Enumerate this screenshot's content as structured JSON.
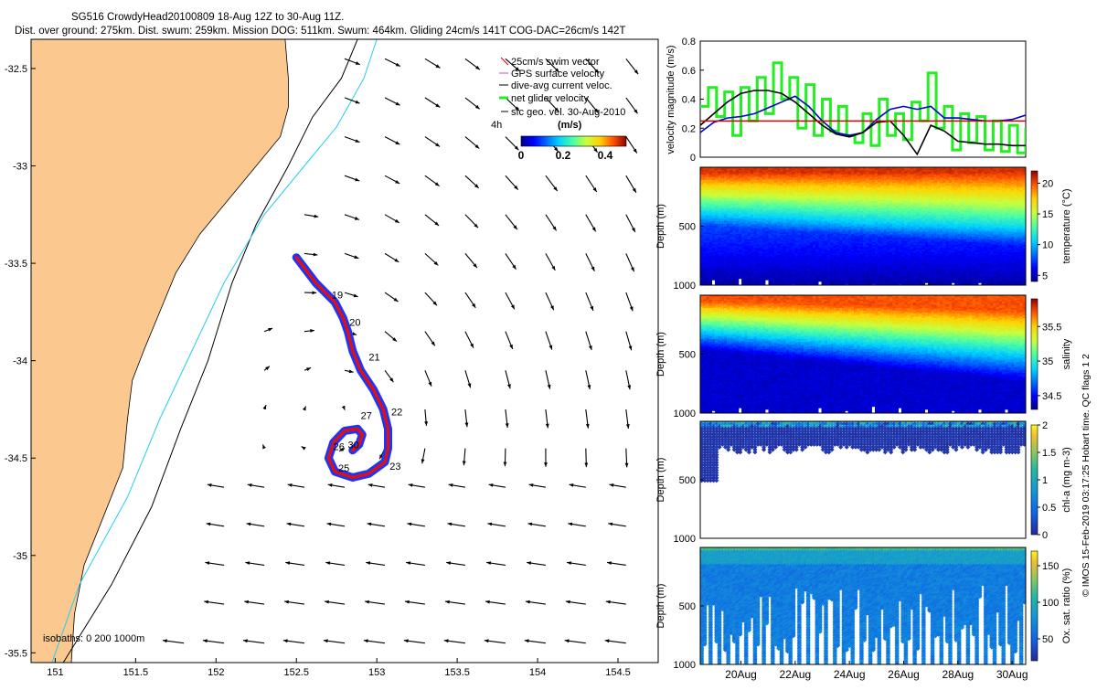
{
  "header": {
    "line1": "SG516 CrowdyHead20100809 18-Aug 12Z to 30-Aug 11Z.",
    "line2": "Dist. over ground: 275km. Dist. swum: 259km. Mission DOG: 511km. Swum: 464km. Gliding 24cm/s 141T COG-DAC=26cm/s 142T"
  },
  "side_note": "© IMOS 15-Feb-2019 03:17:25 Hobart time. QC flags 1  2",
  "colors": {
    "land": "#fbc990",
    "coast": "#000000",
    "iso200": "#000000",
    "iso1000": "#22ccee",
    "track_blue": "#1a35ff",
    "track_red": "#dd1111",
    "swim_red": "#e00000",
    "net_green": "#22ee22",
    "dac_blue": "#0000cc",
    "vel_black": "#000000"
  },
  "chart_data": [
    {
      "type": "map",
      "name": "trajectory",
      "xlim": [
        150.85,
        154.75
      ],
      "ylim": [
        -35.55,
        -32.35
      ],
      "x_ticks": [
        "151",
        "151.5",
        "152",
        "152.5",
        "153",
        "153.5",
        "154",
        "154.5"
      ],
      "x_tick_values": [
        151,
        151.5,
        152,
        152.5,
        153,
        153.5,
        154,
        154.5
      ],
      "y_ticks": [
        "-32.5",
        "-33",
        "-33.5",
        "-34",
        "-34.5",
        "-35",
        "-35.5"
      ],
      "y_tick_values": [
        -32.5,
        -33,
        -33.5,
        -34,
        -34.5,
        -35,
        -35.5
      ],
      "legend": [
        {
          "label": "25cm/s swim vector",
          "color": "#cc0000",
          "marker": "line"
        },
        {
          "label": "GPS surface velocity",
          "color": "#cc44cc",
          "marker": "line"
        },
        {
          "label": "dive-avg current veloc.",
          "color": "#000000",
          "marker": "line"
        },
        {
          "label": "net glider velocity",
          "color": "#22ee22",
          "marker": "thick"
        },
        {
          "label": "sfc geo. vel. 30-Aug-2010",
          "color": "#000000",
          "marker": "arrow"
        }
      ],
      "legend_extra": "4h",
      "colorbar_title": "(m/s)",
      "colorbar_ticks": [
        "0",
        "0.2",
        "0.4"
      ],
      "colorbar_values": [
        0,
        0.2,
        0.4
      ],
      "colorbar_range": [
        0,
        0.5
      ],
      "isobath_label": "isobaths: 0   200  1000m",
      "coast": [
        [
          151.1,
          -35.55
        ],
        [
          151.12,
          -35.3
        ],
        [
          151.18,
          -35.05
        ],
        [
          151.3,
          -34.8
        ],
        [
          151.42,
          -34.55
        ],
        [
          151.45,
          -34.3
        ],
        [
          151.48,
          -34.1
        ],
        [
          151.55,
          -33.95
        ],
        [
          151.65,
          -33.75
        ],
        [
          151.75,
          -33.55
        ],
        [
          151.9,
          -33.35
        ],
        [
          152.1,
          -33.15
        ],
        [
          152.25,
          -33.0
        ],
        [
          152.4,
          -32.85
        ],
        [
          152.45,
          -32.7
        ],
        [
          152.45,
          -32.55
        ],
        [
          152.43,
          -32.35
        ]
      ],
      "iso200": [
        [
          151.05,
          -35.55
        ],
        [
          151.35,
          -35.15
        ],
        [
          151.6,
          -34.75
        ],
        [
          151.78,
          -34.35
        ],
        [
          151.95,
          -34.0
        ],
        [
          152.1,
          -33.6
        ],
        [
          152.25,
          -33.3
        ],
        [
          152.45,
          -33.0
        ],
        [
          152.6,
          -32.75
        ],
        [
          152.78,
          -32.55
        ],
        [
          152.88,
          -32.35
        ]
      ],
      "iso1000": [
        [
          150.98,
          -35.55
        ],
        [
          151.15,
          -35.15
        ],
        [
          151.45,
          -34.7
        ],
        [
          151.65,
          -34.3
        ],
        [
          151.85,
          -33.95
        ],
        [
          152.05,
          -33.6
        ],
        [
          152.3,
          -33.25
        ],
        [
          152.55,
          -33.0
        ],
        [
          152.75,
          -32.8
        ],
        [
          152.92,
          -32.55
        ],
        [
          153.0,
          -32.35
        ]
      ],
      "track": [
        [
          152.5,
          -33.47
        ],
        [
          152.62,
          -33.6
        ],
        [
          152.74,
          -33.7
        ],
        [
          152.79,
          -33.78
        ],
        [
          152.82,
          -33.85
        ],
        [
          152.85,
          -33.95
        ],
        [
          152.9,
          -34.05
        ],
        [
          152.98,
          -34.15
        ],
        [
          153.04,
          -34.25
        ],
        [
          153.07,
          -34.35
        ],
        [
          153.07,
          -34.45
        ],
        [
          153.05,
          -34.52
        ],
        [
          152.95,
          -34.58
        ],
        [
          152.85,
          -34.6
        ],
        [
          152.74,
          -34.57
        ],
        [
          152.7,
          -34.5
        ],
        [
          152.73,
          -34.42
        ],
        [
          152.8,
          -34.36
        ],
        [
          152.88,
          -34.35
        ],
        [
          152.91,
          -34.38
        ],
        [
          152.89,
          -34.43
        ],
        [
          152.85,
          -34.46
        ]
      ],
      "day_labels": [
        {
          "text": "19",
          "lon": 152.72,
          "lat": -33.68
        },
        {
          "text": "20",
          "lon": 152.83,
          "lat": -33.82
        },
        {
          "text": "21",
          "lon": 152.95,
          "lat": -34.0
        },
        {
          "text": "22",
          "lon": 153.09,
          "lat": -34.28
        },
        {
          "text": "23",
          "lon": 153.08,
          "lat": -34.56
        },
        {
          "text": "25",
          "lon": 152.76,
          "lat": -34.57
        },
        {
          "text": "26",
          "lon": 152.73,
          "lat": -34.46
        },
        {
          "text": "27",
          "lon": 152.9,
          "lat": -34.3
        },
        {
          "text": "30",
          "lon": 152.82,
          "lat": -34.45
        }
      ]
    },
    {
      "type": "line",
      "name": "velocity",
      "xlim": [
        18.5,
        30.5
      ],
      "ylim": [
        0,
        0.8
      ],
      "y_ticks": [
        "0",
        "0.2",
        "0.4",
        "0.6",
        "0.8"
      ],
      "y_tick_values": [
        0,
        0.2,
        0.4,
        0.6,
        0.8
      ],
      "ylabel": "velocity magnitude (m/s)",
      "swim_speed": 0.25,
      "series": [
        {
          "color": "#000000",
          "x": [
            18.5,
            19.0,
            19.5,
            20.0,
            20.5,
            21.0,
            21.5,
            22.0,
            22.5,
            23.0,
            23.5,
            24.0,
            24.5,
            25.0,
            25.5,
            26.0,
            26.5,
            27.0,
            27.5,
            28.0,
            28.5,
            29.0,
            29.5,
            30.0,
            30.5
          ],
          "values": [
            0.22,
            0.3,
            0.38,
            0.44,
            0.46,
            0.46,
            0.44,
            0.38,
            0.3,
            0.22,
            0.16,
            0.14,
            0.17,
            0.24,
            0.25,
            0.15,
            0.02,
            0.22,
            0.18,
            0.11,
            0.1,
            0.09,
            0.09,
            0.08,
            0.08
          ]
        },
        {
          "color": "#0000cc",
          "x": [
            18.5,
            19.0,
            19.5,
            20.0,
            20.5,
            21.0,
            21.5,
            22.0,
            22.5,
            23.0,
            23.5,
            24.0,
            24.5,
            25.0,
            25.5,
            26.0,
            26.5,
            27.0,
            27.5,
            28.0,
            28.5,
            29.0,
            29.5,
            30.0,
            30.5
          ],
          "values": [
            0.17,
            0.24,
            0.27,
            0.28,
            0.3,
            0.34,
            0.38,
            0.42,
            0.35,
            0.25,
            0.17,
            0.15,
            0.17,
            0.26,
            0.33,
            0.35,
            0.33,
            0.35,
            0.27,
            0.27,
            0.26,
            0.25,
            0.25,
            0.26,
            0.29
          ]
        },
        {
          "color": "#22ee22",
          "x": [
            18.5,
            18.8,
            19.1,
            19.4,
            19.7,
            20.0,
            20.3,
            20.6,
            20.9,
            21.2,
            21.5,
            21.8,
            22.1,
            22.4,
            22.7,
            23.0,
            23.3,
            23.6,
            23.9,
            24.2,
            24.5,
            24.8,
            25.1,
            25.4,
            25.7,
            26.0,
            26.3,
            26.6,
            26.9,
            27.2,
            27.5,
            27.8,
            28.1,
            28.4,
            28.7,
            29.0,
            29.3,
            29.6,
            29.9,
            30.2,
            30.5
          ],
          "values": [
            0.35,
            0.48,
            0.28,
            0.45,
            0.15,
            0.48,
            0.25,
            0.55,
            0.3,
            0.65,
            0.4,
            0.55,
            0.2,
            0.5,
            0.15,
            0.4,
            0.18,
            0.35,
            0.15,
            0.1,
            0.3,
            0.08,
            0.4,
            0.15,
            0.3,
            0.12,
            0.38,
            0.25,
            0.58,
            0.2,
            0.35,
            0.05,
            0.3,
            0.1,
            0.28,
            0.05,
            0.25,
            0.04,
            0.22,
            0.03,
            0.2
          ]
        }
      ]
    },
    {
      "type": "heatmap",
      "name": "temperature",
      "xlim": [
        18.5,
        30.5
      ],
      "ylim": [
        1000,
        0
      ],
      "y_ticks": [
        "500",
        "1000"
      ],
      "y_tick_values": [
        500,
        1000
      ],
      "ylabel": "Depth (m)",
      "colorbar_label": "temperature (°C)",
      "colorbar_ticks": [
        "5",
        "10",
        "15",
        "20"
      ],
      "colorbar_values": [
        5,
        10,
        15,
        20
      ],
      "colorbar_range": [
        4,
        22
      ]
    },
    {
      "type": "heatmap",
      "name": "salinity",
      "xlim": [
        18.5,
        30.5
      ],
      "ylim": [
        1000,
        0
      ],
      "y_ticks": [
        "500",
        "1000"
      ],
      "y_tick_values": [
        500,
        1000
      ],
      "ylabel": "Depth (m)",
      "colorbar_label": "salinity",
      "colorbar_ticks": [
        "34.5",
        "35",
        "35.5"
      ],
      "colorbar_values": [
        34.5,
        35,
        35.5
      ],
      "colorbar_range": [
        34.3,
        35.9
      ]
    },
    {
      "type": "scatter",
      "name": "chlorophyll",
      "xlim": [
        18.5,
        30.5
      ],
      "ylim": [
        1000,
        0
      ],
      "y_ticks": [
        "500",
        "1000"
      ],
      "y_tick_values": [
        500,
        1000
      ],
      "ylabel": "Depth (m)",
      "colorbar_label": "chl-a (mg m-3)",
      "colorbar_ticks": [
        "0",
        "0.5",
        "1",
        "1.5",
        "2"
      ],
      "colorbar_values": [
        0,
        0.5,
        1,
        1.5,
        2
      ],
      "colorbar_range": [
        0,
        2
      ]
    },
    {
      "type": "scatter",
      "name": "oxygen",
      "xlim": [
        18.5,
        30.5
      ],
      "ylim": [
        1000,
        0
      ],
      "y_ticks": [
        "500",
        "1000"
      ],
      "y_tick_values": [
        500,
        1000
      ],
      "ylabel": "Depth (m)",
      "xticks": [
        "20Aug",
        "22Aug",
        "24Aug",
        "26Aug",
        "28Aug",
        "30Aug"
      ],
      "xtick_values": [
        20,
        22,
        24,
        26,
        28,
        30
      ],
      "colorbar_label": "Ox. sat. ratio (%)",
      "colorbar_ticks": [
        "50",
        "100",
        "150"
      ],
      "colorbar_values": [
        50,
        100,
        150
      ],
      "colorbar_range": [
        20,
        170
      ]
    }
  ]
}
